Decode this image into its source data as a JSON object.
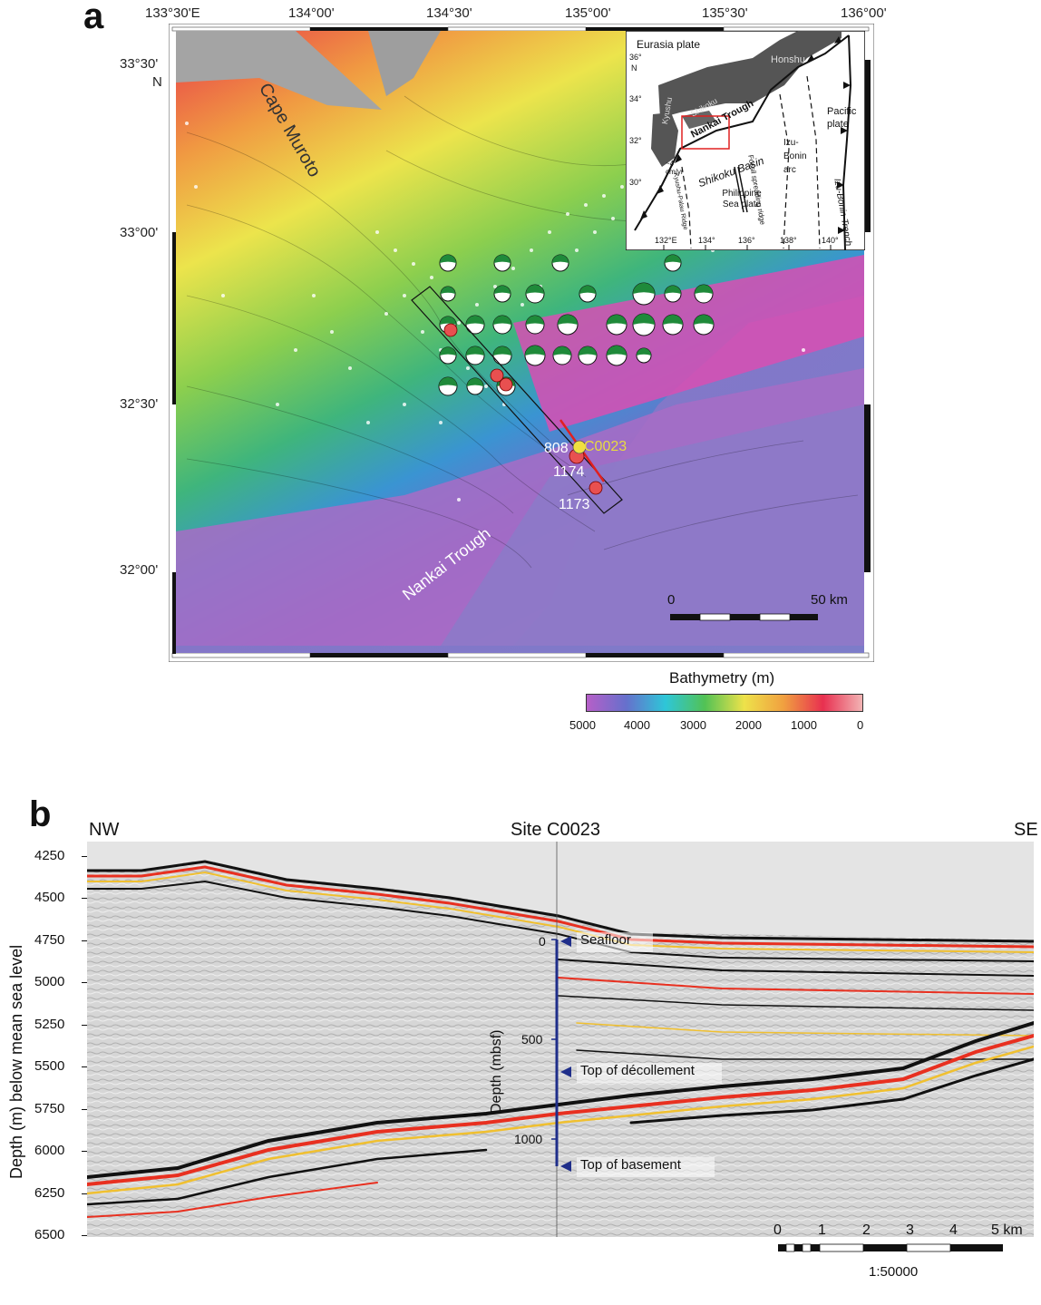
{
  "panel_a": {
    "label": "a",
    "lon_ticks": [
      "133°30'E",
      "134°00'",
      "134°30'",
      "135°00'",
      "135°30'",
      "136°00'"
    ],
    "lat_ticks": [
      "33°30'",
      "33°00'",
      "32°30'",
      "32°00'"
    ],
    "lat_unit": "N",
    "place_labels": {
      "cape": "Cape Muroto",
      "trough": "Nankai Trough"
    },
    "sites": [
      {
        "name": "808",
        "color": "#e04040"
      },
      {
        "name": "C0023",
        "color": "#f0e040"
      },
      {
        "name": "1174",
        "color": "#e04040"
      },
      {
        "name": "1173",
        "color": "#e04040"
      }
    ],
    "scale_bar": {
      "start": "0",
      "end": "50 km"
    },
    "colorbar": {
      "title": "Bathymetry (m)",
      "ticks": [
        "5000",
        "4000",
        "3000",
        "2000",
        "1000",
        "0"
      ],
      "colors": [
        "#b65fc8",
        "#6670cc",
        "#2ec6d8",
        "#52c255",
        "#eee24a",
        "#f0a040",
        "#e83050",
        "#f2b4b4"
      ]
    },
    "inset": {
      "labels": {
        "eurasia": "Eurasia plate",
        "honshu": "Honshu",
        "kyushu": "Kyushu",
        "shikoku": "Shikoku",
        "nankai": "Nankai Trough",
        "pacific": "Pacific plate",
        "izu_arc": "Izu-Bonin arc",
        "izu_trench": "Izu-Bonin Trench",
        "shikoku_basin": "Shikoku Basin",
        "ph_sea": "Philippine Sea plate",
        "kyushu_palau": "Kyushu-Palau Ridge",
        "fossil_ridge": "Fossil spreading ridge",
        "rate": "~4 cm/yr",
        "lat_36": "36°",
        "lat_36_unit": "N",
        "lat_34": "34°",
        "lat_32": "32°",
        "lat_30": "30°"
      },
      "lon_ticks": [
        "132°E",
        "134°",
        "136°",
        "138°",
        "140°"
      ]
    }
  },
  "panel_b": {
    "label": "b",
    "left_label": "NW",
    "center_label": "Site C0023",
    "right_label": "SE",
    "y_axis_label": "Depth (m) below mean sea level",
    "y_ticks": [
      4250,
      4500,
      4750,
      5000,
      5250,
      5500,
      5750,
      6000,
      6250,
      6500
    ],
    "borehole_axis_label": "Depth (mbsf)",
    "borehole_ticks": [
      "0",
      "500",
      "1000"
    ],
    "annotations": [
      "Seafloor",
      "Top of décollement",
      "Top of basement"
    ],
    "scale_bar": {
      "ticks": [
        "0",
        "1",
        "2",
        "3",
        "4",
        "5 km"
      ],
      "ratio": "1:50000"
    }
  }
}
